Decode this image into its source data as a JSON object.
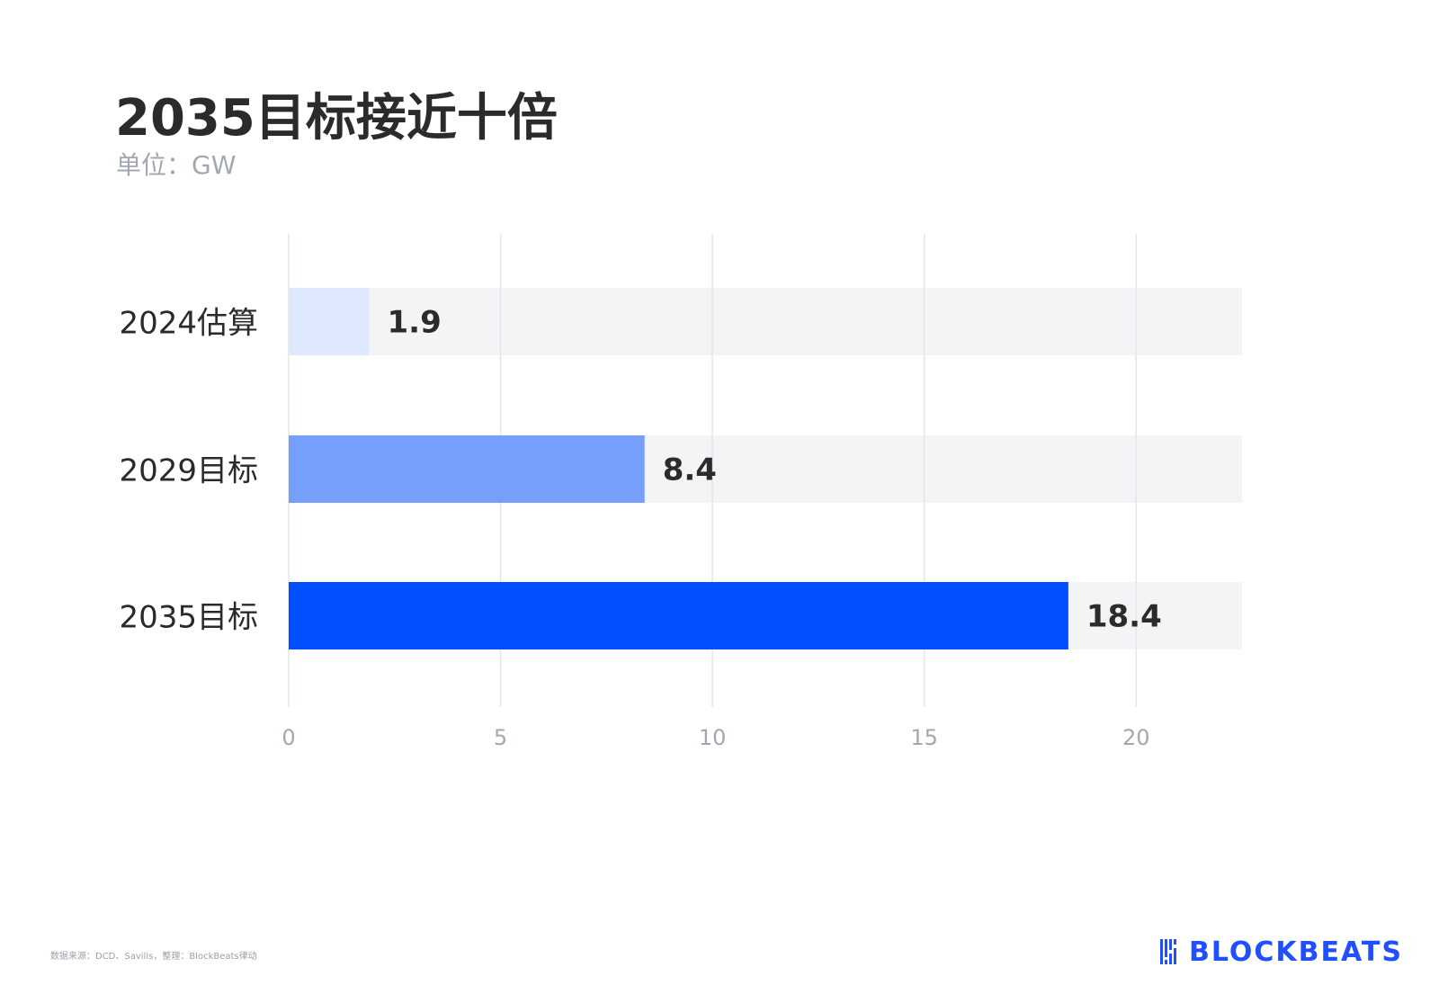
{
  "title": "2035目标接近十倍",
  "subtitle": "单位：GW",
  "source": "数据来源：DCD、Savills，整理：BlockBeats律动",
  "logo_text": "BLOCKBEATS",
  "colors": {
    "track": "#f2f4f6",
    "grid": "#e3e6ea",
    "bar_2024": "#dfe9fd",
    "bar_2029": "#769ffb",
    "bar_2035": "#0050ff",
    "label": "#2b2b2b",
    "tick": "#a3a8b0",
    "logo": "#1f4fff"
  },
  "chart_data": {
    "type": "bar",
    "orientation": "horizontal",
    "categories": [
      "2024估算",
      "2029目标",
      "2035目标"
    ],
    "values": [
      1.9,
      8.4,
      18.4
    ],
    "value_labels": [
      "1.9",
      "8.4",
      "18.4"
    ],
    "xlim": [
      0,
      22.5
    ],
    "xticks": [
      0,
      5,
      10,
      15,
      20
    ],
    "xtick_labels": [
      "0",
      "5",
      "10",
      "15",
      "20"
    ],
    "grid": true,
    "title": "2035目标接近十倍",
    "xlabel": "",
    "ylabel": ""
  }
}
